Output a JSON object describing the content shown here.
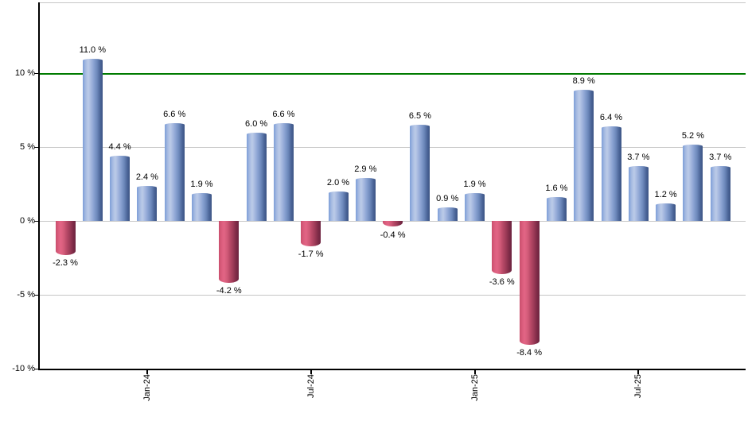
{
  "chart_data": {
    "type": "bar",
    "title": "",
    "description": "Monthly total returns bar chart, positive months blue, negative months red",
    "values": [
      -2.3,
      11.0,
      4.4,
      2.4,
      6.6,
      1.9,
      -4.2,
      6.0,
      6.6,
      -1.7,
      2.0,
      2.9,
      -0.4,
      6.5,
      0.9,
      1.9,
      -3.6,
      -8.4,
      1.6,
      8.9,
      6.4,
      3.7,
      1.2,
      5.2,
      3.7
    ],
    "bar_labels": [
      "-2.3 %",
      "11.0 %",
      "4.4 %",
      "2.4 %",
      "6.6 %",
      "1.9 %",
      "-4.2 %",
      "6.0 %",
      "6.6 %",
      "-1.7 %",
      "2.0 %",
      "2.9 %",
      "-0.4 %",
      "6.5 %",
      "0.9 %",
      "1.9 %",
      "-3.6 %",
      "-8.4 %",
      "1.6 %",
      "8.9 %",
      "6.4 %",
      "3.7 %",
      "1.2 %",
      "5.2 %",
      "3.7 %"
    ],
    "x_axis": {
      "tick_labels": [
        "Jan-24",
        "Jul-24",
        "Jan-25",
        "Jul-25"
      ],
      "tick_bar_indices": [
        3,
        9,
        15,
        21
      ]
    },
    "y_axis": {
      "tick_labels": [
        "10 %",
        "5 %",
        "0 %",
        "-5 %",
        "-10 %"
      ],
      "tick_values": [
        10,
        5,
        0,
        -5,
        -10
      ],
      "min": -10,
      "max": 14.8
    },
    "reference_line": {
      "value": 10,
      "color": "#007b00"
    },
    "grid": "horizontal",
    "legend": "none",
    "colors": {
      "positive_bar": "#7e9ed8",
      "negative_bar": "#c94f6d",
      "grid_line": "#c6c6c6",
      "axis_line": "#000000",
      "label_text": "#000000",
      "background": "#ffffff"
    }
  }
}
